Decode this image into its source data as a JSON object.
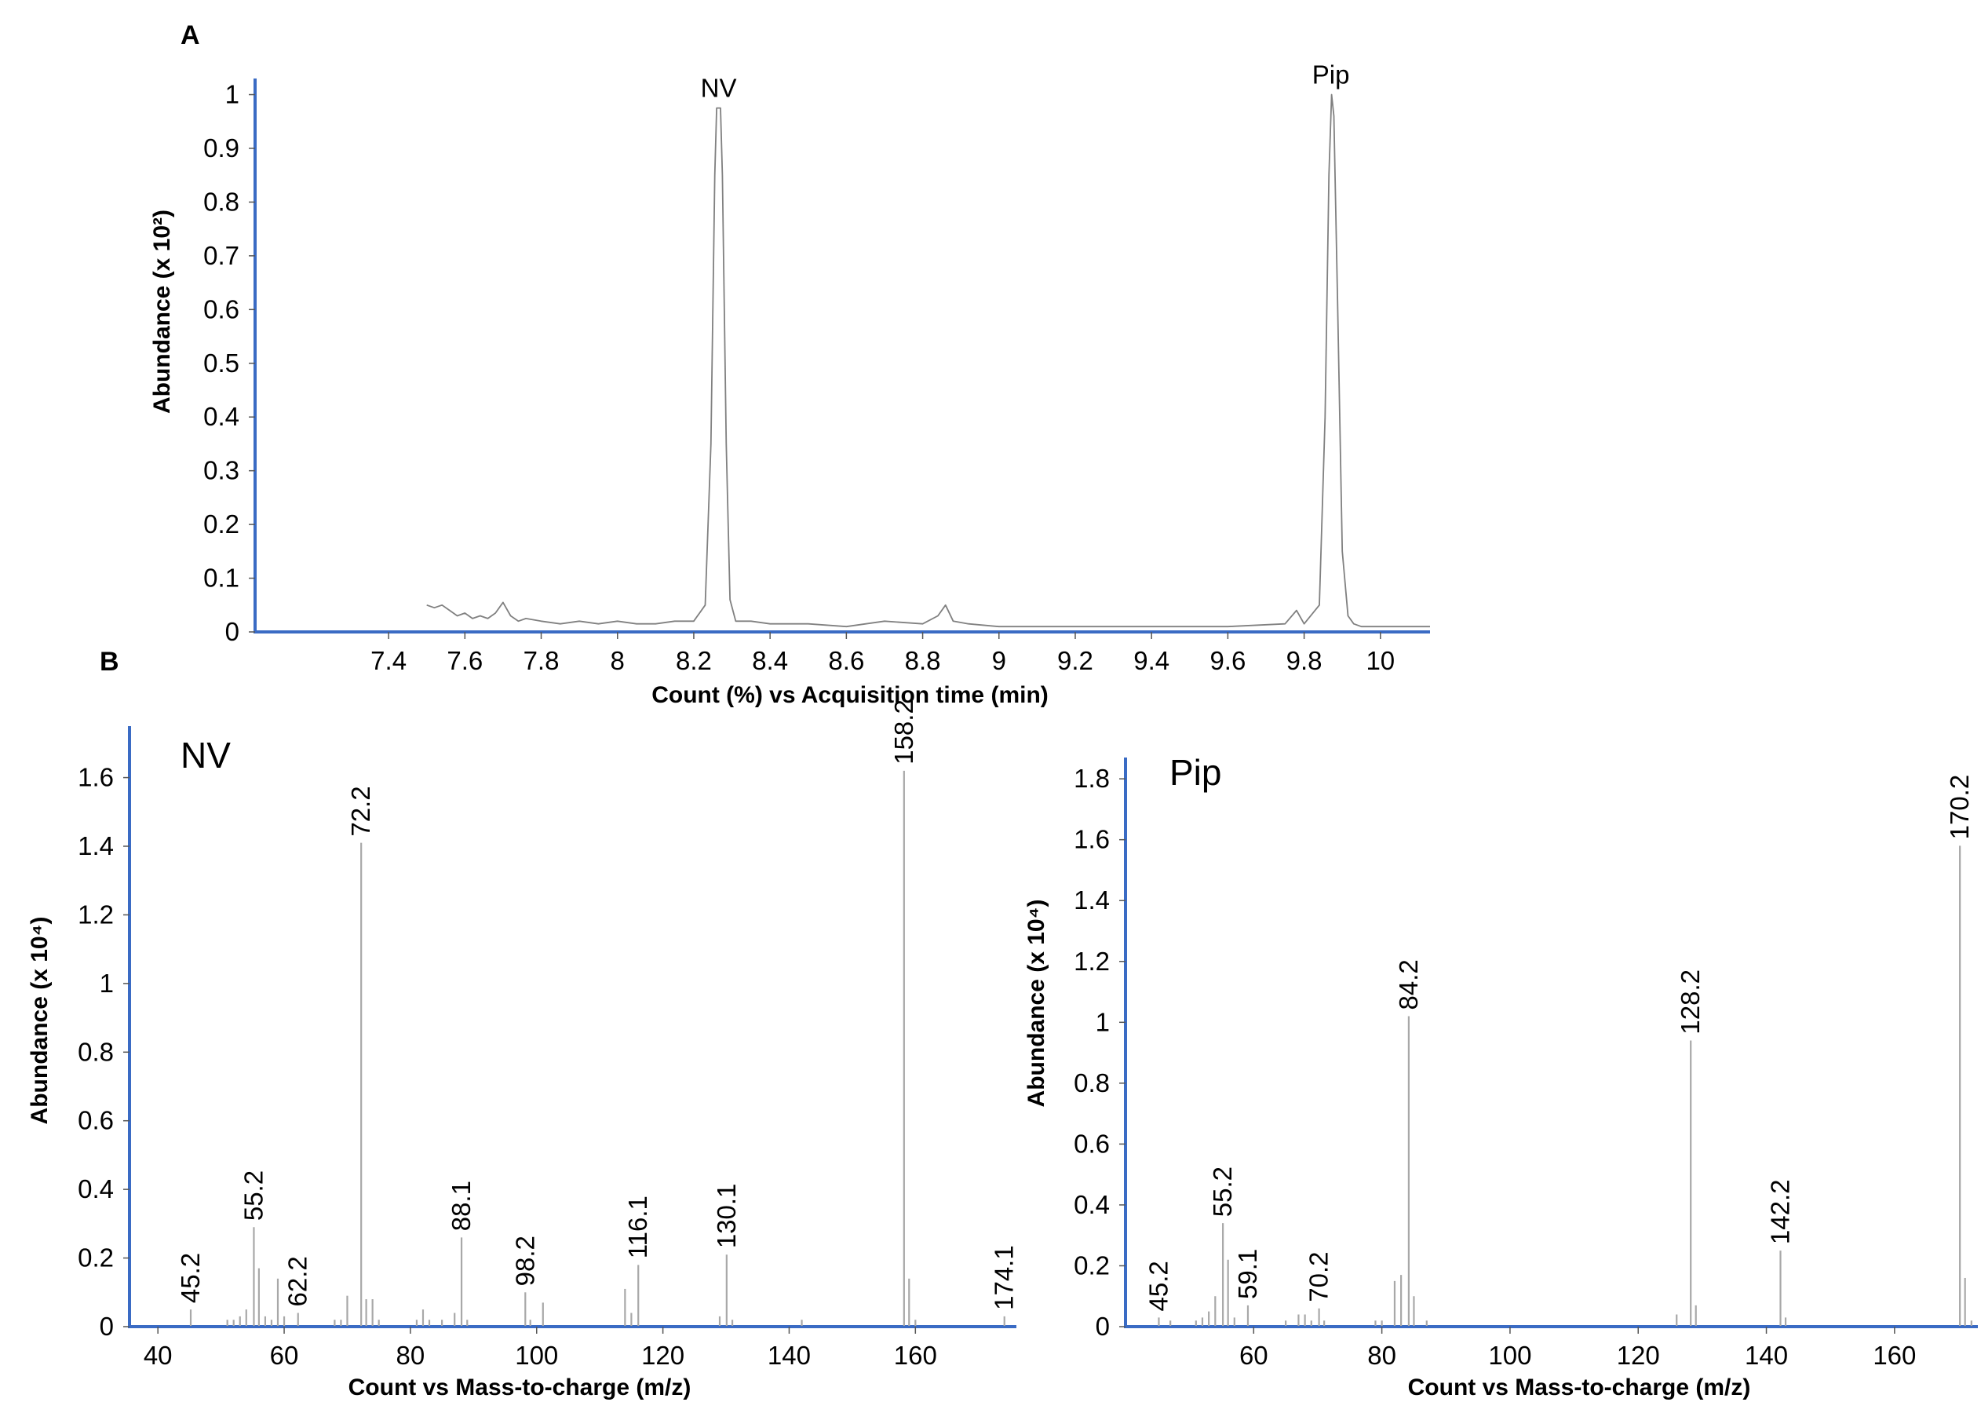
{
  "panel_labels": {
    "a": "A",
    "b": "B"
  },
  "colors": {
    "axis": "#3a6bc4",
    "trace": "#808080",
    "stick": "#a8a8a8"
  },
  "chart_data": [
    {
      "id": "chromatogram",
      "type": "line",
      "xlabel": "Count (%) vs Acquisition time (min)",
      "ylabel": "Abundance (x 10²)",
      "xlim": [
        7.05,
        10.13
      ],
      "ylim": [
        0,
        1.03
      ],
      "xticks": [
        7.4,
        7.6,
        7.8,
        8,
        8.2,
        8.4,
        8.6,
        8.8,
        9,
        9.2,
        9.4,
        9.6,
        9.8,
        10
      ],
      "xtick_labels": [
        "7.4",
        "7.6",
        "7.8",
        "8",
        "8.2",
        "8.4",
        "8.6",
        "8.8",
        "9",
        "9.2",
        "9.4",
        "9.6",
        "9.8",
        "10"
      ],
      "yticks": [
        0,
        0.1,
        0.2,
        0.3,
        0.4,
        0.5,
        0.6,
        0.7,
        0.8,
        0.9,
        1
      ],
      "ytick_labels": [
        "0",
        "0.1",
        "0.2",
        "0.3",
        "0.4",
        "0.5",
        "0.6",
        "0.7",
        "0.8",
        "0.9",
        "1"
      ],
      "grid": false,
      "series": [
        {
          "x": [
            7.5,
            7.52,
            7.54,
            7.56,
            7.58,
            7.6,
            7.62,
            7.64,
            7.66,
            7.68,
            7.7,
            7.72,
            7.74,
            7.76,
            7.8,
            7.85,
            7.9,
            7.95,
            8.0,
            8.05,
            8.1,
            8.15,
            8.2,
            8.23,
            8.245,
            8.255,
            8.26,
            8.27,
            8.275,
            8.285,
            8.295,
            8.31,
            8.35,
            8.4,
            8.5,
            8.6,
            8.7,
            8.8,
            8.84,
            8.86,
            8.88,
            8.92,
            9.0,
            9.2,
            9.4,
            9.6,
            9.75,
            9.78,
            9.8,
            9.84,
            9.855,
            9.865,
            9.872,
            9.878,
            9.888,
            9.9,
            9.915,
            9.93,
            9.95,
            10.0,
            10.05,
            10.13
          ],
          "y": [
            0.05,
            0.045,
            0.05,
            0.04,
            0.03,
            0.035,
            0.025,
            0.03,
            0.025,
            0.035,
            0.055,
            0.03,
            0.02,
            0.025,
            0.02,
            0.015,
            0.02,
            0.015,
            0.02,
            0.015,
            0.015,
            0.02,
            0.02,
            0.05,
            0.35,
            0.85,
            0.975,
            0.975,
            0.85,
            0.35,
            0.06,
            0.02,
            0.02,
            0.015,
            0.015,
            0.01,
            0.02,
            0.015,
            0.03,
            0.05,
            0.02,
            0.015,
            0.01,
            0.01,
            0.01,
            0.01,
            0.015,
            0.04,
            0.015,
            0.05,
            0.4,
            0.85,
            1.0,
            0.96,
            0.6,
            0.15,
            0.03,
            0.015,
            0.01,
            0.01,
            0.01,
            0.01
          ]
        }
      ],
      "annotations": [
        {
          "text": "NV",
          "x": 8.265,
          "y": 0.975
        },
        {
          "text": "Pip",
          "x": 9.87,
          "y": 1.0
        }
      ]
    },
    {
      "id": "spectrum-nv",
      "type": "bar",
      "title": "NV",
      "xlabel": "Count vs Mass-to-charge (m/z)",
      "ylabel": "Abundance (x 10⁴)",
      "xlim": [
        35.5,
        176
      ],
      "ylim": [
        0,
        1.75
      ],
      "xticks": [
        40,
        60,
        80,
        100,
        120,
        140,
        160
      ],
      "xtick_labels": [
        "40",
        "60",
        "80",
        "100",
        "120",
        "140",
        "160"
      ],
      "yticks": [
        0,
        0.2,
        0.4,
        0.6,
        0.8,
        1,
        1.2,
        1.4,
        1.6
      ],
      "ytick_labels": [
        "0",
        "0.2",
        "0.4",
        "0.6",
        "0.8",
        "1",
        "1.2",
        "1.4",
        "1.6"
      ],
      "grid": false,
      "x": [
        45.2,
        51,
        52,
        53,
        54,
        55.2,
        56,
        57,
        58,
        59,
        60,
        62.2,
        68,
        69,
        70,
        72.2,
        73,
        74,
        75,
        81,
        82,
        83,
        85,
        87,
        88.1,
        89,
        98.2,
        99,
        101,
        114,
        115,
        116.1,
        129,
        130.1,
        131,
        142,
        158.2,
        159,
        160,
        174.1
      ],
      "y": [
        0.05,
        0.02,
        0.02,
        0.03,
        0.05,
        0.29,
        0.17,
        0.03,
        0.02,
        0.14,
        0.03,
        0.04,
        0.02,
        0.02,
        0.09,
        1.41,
        0.08,
        0.08,
        0.02,
        0.02,
        0.05,
        0.02,
        0.02,
        0.04,
        0.26,
        0.02,
        0.1,
        0.02,
        0.07,
        0.11,
        0.04,
        0.18,
        0.03,
        0.21,
        0.02,
        0.02,
        1.62,
        0.14,
        0.02,
        0.03
      ],
      "peak_labels": [
        {
          "x": 45.2,
          "text": "45.2"
        },
        {
          "x": 55.2,
          "text": "55.2"
        },
        {
          "x": 62.2,
          "text": "62.2"
        },
        {
          "x": 72.2,
          "text": "72.2"
        },
        {
          "x": 88.1,
          "text": "88.1"
        },
        {
          "x": 98.2,
          "text": "98.2"
        },
        {
          "x": 116.1,
          "text": "116.1"
        },
        {
          "x": 130.1,
          "text": "130.1"
        },
        {
          "x": 158.2,
          "text": "158.2"
        },
        {
          "x": 174.1,
          "text": "174.1"
        }
      ]
    },
    {
      "id": "spectrum-pip",
      "type": "bar",
      "title": "Pip",
      "xlabel": "Count vs Mass-to-charge (m/z)",
      "ylabel": "Abundance (x 10⁴)",
      "xlim": [
        40,
        173
      ],
      "ylim": [
        0,
        1.87
      ],
      "xticks": [
        60,
        80,
        100,
        120,
        140,
        160
      ],
      "xtick_labels": [
        "60",
        "80",
        "100",
        "120",
        "140",
        "160"
      ],
      "yticks": [
        0,
        0.2,
        0.4,
        0.6,
        0.8,
        1,
        1.2,
        1.4,
        1.6,
        1.8
      ],
      "ytick_labels": [
        "0",
        "0.2",
        "0.4",
        "0.6",
        "0.8",
        "1",
        "1.2",
        "1.4",
        "1.6",
        "1.8"
      ],
      "grid": false,
      "x": [
        45.2,
        47,
        51,
        52,
        53,
        54,
        55.2,
        56,
        57,
        59.1,
        65,
        67,
        68,
        69,
        70.2,
        71,
        79,
        80,
        82,
        83,
        84.2,
        85,
        87,
        126,
        128.2,
        129,
        142.2,
        143,
        170.2,
        171,
        172
      ],
      "y": [
        0.03,
        0.02,
        0.02,
        0.03,
        0.05,
        0.1,
        0.34,
        0.22,
        0.03,
        0.07,
        0.02,
        0.04,
        0.04,
        0.02,
        0.06,
        0.02,
        0.02,
        0.02,
        0.15,
        0.17,
        1.02,
        0.1,
        0.02,
        0.04,
        0.94,
        0.07,
        0.25,
        0.03,
        1.58,
        0.16,
        0.02
      ],
      "peak_labels": [
        {
          "x": 45.2,
          "text": "45.2"
        },
        {
          "x": 55.2,
          "text": "55.2"
        },
        {
          "x": 59.1,
          "text": "59.1"
        },
        {
          "x": 70.2,
          "text": "70.2"
        },
        {
          "x": 84.2,
          "text": "84.2"
        },
        {
          "x": 128.2,
          "text": "128.2"
        },
        {
          "x": 142.2,
          "text": "142.2"
        },
        {
          "x": 170.2,
          "text": "170.2"
        }
      ]
    }
  ]
}
